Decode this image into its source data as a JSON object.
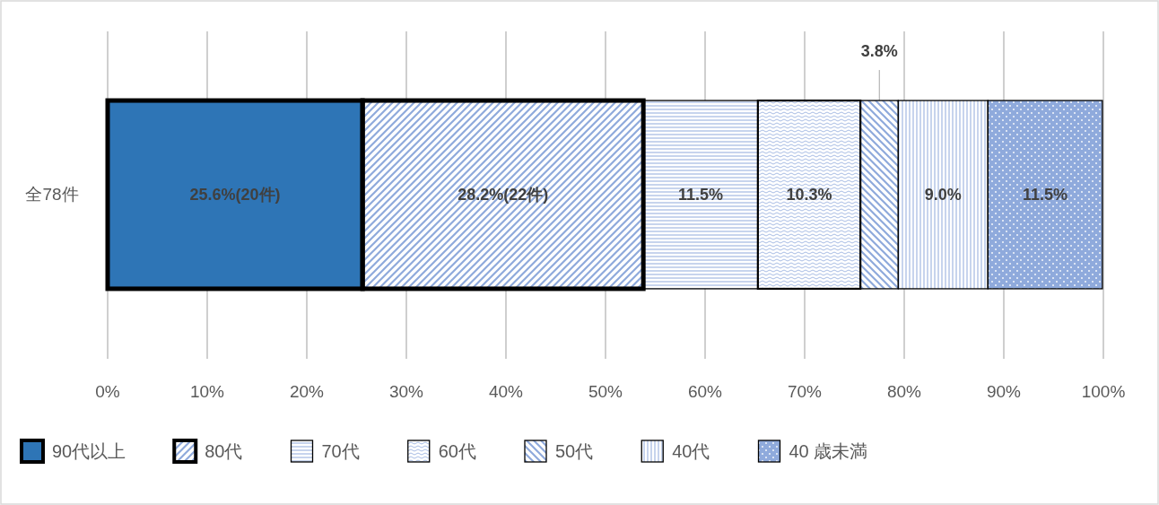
{
  "chart_data": {
    "type": "bar",
    "orientation": "horizontal",
    "stacked": true,
    "categories": [
      "全78件"
    ],
    "series": [
      {
        "name": "90代以上",
        "color": "#2e75b6",
        "values": [
          25.6
        ],
        "value_labels": [
          "25.6%(20件)"
        ]
      },
      {
        "name": "80代",
        "color": "#8faadc",
        "values": [
          28.2
        ],
        "value_labels": [
          "28.2%(22件)"
        ]
      },
      {
        "name": "70代",
        "color": "#8faadc",
        "values": [
          11.5
        ],
        "value_labels": [
          "11.5%"
        ]
      },
      {
        "name": "60代",
        "color": "#8faadc",
        "values": [
          10.3
        ],
        "value_labels": [
          "10.3%"
        ]
      },
      {
        "name": "50代",
        "color": "#8faadc",
        "values": [
          3.8
        ],
        "value_labels": [
          "3.8%"
        ]
      },
      {
        "name": "40代",
        "color": "#8faadc",
        "values": [
          9.0
        ],
        "value_labels": [
          "9.0%"
        ]
      },
      {
        "name": "40 歳未満",
        "color": "#8faadc",
        "values": [
          11.5
        ],
        "value_labels": [
          "11.5%"
        ]
      }
    ],
    "xlim": [
      0,
      100
    ],
    "xticks": [
      {
        "value": 0,
        "label": "0%"
      },
      {
        "value": 10,
        "label": "10%"
      },
      {
        "value": 20,
        "label": "20%"
      },
      {
        "value": 30,
        "label": "30%"
      },
      {
        "value": 40,
        "label": "40%"
      },
      {
        "value": 50,
        "label": "50%"
      },
      {
        "value": 60,
        "label": "60%"
      },
      {
        "value": 70,
        "label": "70%"
      },
      {
        "value": 80,
        "label": "80%"
      },
      {
        "value": 90,
        "label": "90%"
      },
      {
        "value": 100,
        "label": "100%"
      }
    ],
    "grid": "x",
    "legend": "bottom"
  }
}
